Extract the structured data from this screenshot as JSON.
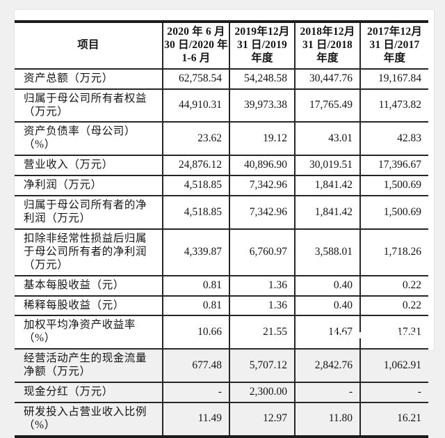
{
  "colors": {
    "page_background": "#f0f0f0",
    "card_background": "#ffffff",
    "text": "#141414",
    "table_border": "#1c1c1c"
  },
  "table": {
    "header": {
      "item_label": "项目",
      "period_columns": [
        "2020 年 6 月\n30 日/2020 年\n1-6 月",
        "2019年12月\n31 日/2019\n年度",
        "2018年12月\n31 日/2018\n年度",
        "2017年12月\n31 日/2017\n年度"
      ]
    },
    "rows": [
      {
        "label": "资产总额（万元）",
        "values": [
          "62,758.54",
          "54,248.58",
          "30,447.76",
          "19,167.84"
        ]
      },
      {
        "label": "归属于母公司所有者权益（万元）",
        "values": [
          "44,910.31",
          "39,973.38",
          "17,765.49",
          "11,473.82"
        ]
      },
      {
        "label": "资产负债率（母公司）（%）",
        "values": [
          "23.62",
          "19.12",
          "43.01",
          "42.83"
        ]
      },
      {
        "label": "营业收入（万元）",
        "values": [
          "24,876.12",
          "40,896.90",
          "30,019.51",
          "17,396.67"
        ]
      },
      {
        "label": "净利润（万元）",
        "values": [
          "4,518.85",
          "7,342.96",
          "1,841.42",
          "1,500.69"
        ]
      },
      {
        "label": "归属于母公司所有者的净利润（万元）",
        "values": [
          "4,518.85",
          "7,342.96",
          "1,841.42",
          "1,500.69"
        ]
      },
      {
        "label": "扣除非经常性损益后归属于母公司所有者的净利润（万元）",
        "values": [
          "4,339.87",
          "6,760.97",
          "3,588.01",
          "1,718.26"
        ]
      },
      {
        "label": "基本每股收益（元）",
        "values": [
          "0.81",
          "1.36",
          "0.40",
          "0.22"
        ]
      },
      {
        "label": "稀释每股收益（元）",
        "values": [
          "0.81",
          "1.36",
          "0.40",
          "0.22"
        ]
      },
      {
        "label": "加权平均净资产收益率（%）",
        "values": [
          "10.66",
          "21.55",
          "14.67",
          "17.31"
        ]
      },
      {
        "label": "经营活动产生的现金流量净额（万元）",
        "values": [
          "677.48",
          "5,707.12",
          "2,842.76",
          "1,062.91"
        ]
      },
      {
        "label": "现金分红（万元）",
        "values": [
          "-",
          "2,300.00",
          "-",
          "-"
        ]
      },
      {
        "label": "研发投入占营业收入比例（%）",
        "values": [
          "11.49",
          "12.97",
          "11.80",
          "16.21"
        ]
      }
    ]
  }
}
